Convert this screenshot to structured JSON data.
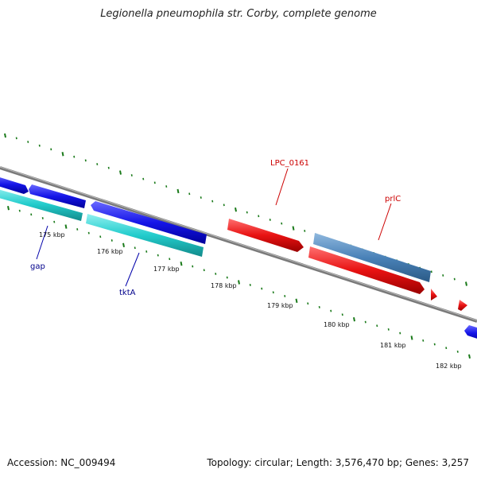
{
  "title": "Legionella pneumophila str. Corby, complete genome",
  "footer": {
    "accession": "Accession: NC_009494",
    "summary": "Topology: circular; Length: 3,576,470 bp; Genes: 3,257"
  },
  "scale_labels": [
    "175 kbp",
    "176 kbp",
    "177 kbp",
    "178 kbp",
    "179 kbp",
    "180 kbp",
    "181 kbp",
    "182 kbp"
  ],
  "gene_labels": [
    {
      "name": "gap",
      "color": "#00008b"
    },
    {
      "name": "tktA",
      "color": "#00008b"
    },
    {
      "name": "LPC_0161",
      "color": "#cc0000"
    },
    {
      "name": "prlC",
      "color": "#cc0000"
    }
  ],
  "colors": {
    "backbone": "#808080",
    "tick": "#1a7a1a",
    "blue_gene": "#1010e0",
    "cyan_gene": "#20c8c8",
    "red_gene": "#e01010",
    "steel_gene": "#4682b4"
  }
}
